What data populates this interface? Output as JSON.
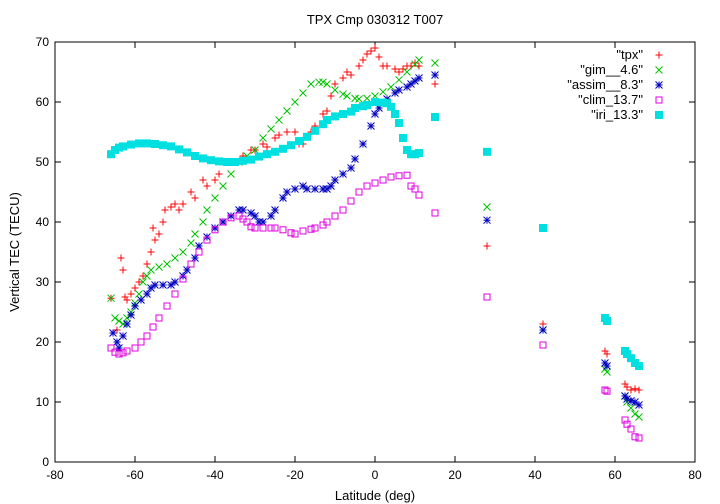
{
  "chart_data": {
    "type": "scatter",
    "title": "TPX Cmp 030312 T007",
    "xlabel": "Latitude (deg)",
    "ylabel": "Vertical TEC (TECU)",
    "xlim": [
      -80,
      80
    ],
    "ylim": [
      0,
      70
    ],
    "xticks": [
      -80,
      -60,
      -40,
      -20,
      0,
      20,
      40,
      60,
      80
    ],
    "yticks": [
      0,
      10,
      20,
      30,
      40,
      50,
      60,
      70
    ],
    "grid": false,
    "legend_position": "top-right",
    "series": [
      {
        "name": "\"tpx\"",
        "marker": "plus",
        "color": "#ff0000",
        "points": [
          [
            -66,
            27.3
          ],
          [
            -64.5,
            22
          ],
          [
            -63.5,
            34
          ],
          [
            -63,
            32
          ],
          [
            -62.5,
            27.5
          ],
          [
            -62,
            27
          ],
          [
            -61,
            28
          ],
          [
            -60,
            29
          ],
          [
            -59,
            30
          ],
          [
            -58,
            31
          ],
          [
            -57,
            33
          ],
          [
            -56,
            35
          ],
          [
            -55.5,
            39
          ],
          [
            -55,
            37
          ],
          [
            -54,
            38
          ],
          [
            -53,
            40
          ],
          [
            -52.5,
            42
          ],
          [
            -51,
            42.5
          ],
          [
            -50,
            43
          ],
          [
            -49,
            42
          ],
          [
            -48,
            43
          ],
          [
            -46,
            45
          ],
          [
            -45,
            44
          ],
          [
            -43,
            47
          ],
          [
            -42,
            46
          ],
          [
            -40,
            47
          ],
          [
            -39,
            48
          ],
          [
            -37,
            50
          ],
          [
            -35,
            50
          ],
          [
            -33,
            51
          ],
          [
            -31,
            52
          ],
          [
            -30,
            52
          ],
          [
            -28,
            53
          ],
          [
            -27,
            52.5
          ],
          [
            -25,
            54
          ],
          [
            -24,
            54.5
          ],
          [
            -22,
            55
          ],
          [
            -20,
            55
          ],
          [
            -19,
            53
          ],
          [
            -18,
            53
          ],
          [
            -16,
            55
          ],
          [
            -15,
            56
          ],
          [
            -13,
            58
          ],
          [
            -12,
            58.5
          ],
          [
            -11,
            61
          ],
          [
            -10,
            63
          ],
          [
            -8,
            64
          ],
          [
            -7,
            65
          ],
          [
            -6,
            64.5
          ],
          [
            -4,
            66
          ],
          [
            -3,
            67
          ],
          [
            -2,
            68
          ],
          [
            -1,
            68.5
          ],
          [
            0,
            69
          ],
          [
            1,
            67.5
          ],
          [
            2,
            66
          ],
          [
            3,
            66
          ],
          [
            5,
            65.5
          ],
          [
            6,
            65
          ],
          [
            7,
            65.5
          ],
          [
            8,
            66
          ],
          [
            9,
            66
          ],
          [
            10,
            66.5
          ],
          [
            11,
            66
          ],
          [
            15,
            63
          ],
          [
            28,
            36
          ],
          [
            42,
            23
          ],
          [
            57.5,
            18.5
          ],
          [
            58,
            18
          ],
          [
            62.5,
            13
          ],
          [
            63,
            12.5
          ],
          [
            64,
            12
          ],
          [
            65,
            12.2
          ],
          [
            66,
            12
          ]
        ]
      },
      {
        "name": "\"gim__4.6\"",
        "marker": "cross",
        "color": "#00c000",
        "points": [
          [
            -66,
            27.3
          ],
          [
            -65,
            24
          ],
          [
            -64,
            23.5
          ],
          [
            -63,
            23
          ],
          [
            -62,
            24
          ],
          [
            -61,
            25
          ],
          [
            -60,
            26.5
          ],
          [
            -59,
            28
          ],
          [
            -58,
            30
          ],
          [
            -57,
            31
          ],
          [
            -56,
            32
          ],
          [
            -54,
            32.5
          ],
          [
            -52,
            33
          ],
          [
            -50,
            34
          ],
          [
            -48,
            35
          ],
          [
            -46,
            36.5
          ],
          [
            -45,
            38
          ],
          [
            -43,
            40
          ],
          [
            -42,
            42
          ],
          [
            -40,
            44
          ],
          [
            -38,
            46
          ],
          [
            -36,
            48
          ],
          [
            -34,
            50
          ],
          [
            -32,
            51
          ],
          [
            -30,
            52
          ],
          [
            -28,
            54
          ],
          [
            -26,
            55.5
          ],
          [
            -24,
            57
          ],
          [
            -22,
            58.5
          ],
          [
            -20,
            60
          ],
          [
            -18,
            61.5
          ],
          [
            -16,
            63
          ],
          [
            -14,
            63.3
          ],
          [
            -13,
            63.3
          ],
          [
            -12,
            63
          ],
          [
            -10,
            62
          ],
          [
            -8,
            61.3
          ],
          [
            -7,
            61
          ],
          [
            -5,
            60.6
          ],
          [
            -4,
            60.5
          ],
          [
            -2,
            60.6
          ],
          [
            0,
            61
          ],
          [
            2,
            61.7
          ],
          [
            4,
            62.5
          ],
          [
            6,
            63.7
          ],
          [
            8,
            65
          ],
          [
            10,
            66.3
          ],
          [
            11,
            67
          ],
          [
            15,
            66.5
          ],
          [
            28,
            42.5
          ],
          [
            42,
            22
          ],
          [
            57.5,
            15.5
          ],
          [
            58,
            15
          ],
          [
            62.5,
            11
          ],
          [
            63,
            10
          ],
          [
            64,
            9
          ],
          [
            65,
            8
          ],
          [
            66,
            7.5
          ]
        ]
      },
      {
        "name": "\"assim__8.3\"",
        "marker": "star",
        "color": "#0000c0",
        "points": [
          [
            -65.5,
            21.5
          ],
          [
            -64.5,
            20
          ],
          [
            -64,
            19
          ],
          [
            -63,
            21
          ],
          [
            -62,
            23
          ],
          [
            -61,
            24.5
          ],
          [
            -60,
            26
          ],
          [
            -58.5,
            27
          ],
          [
            -57,
            28
          ],
          [
            -56,
            29
          ],
          [
            -55,
            29.5
          ],
          [
            -53,
            29.5
          ],
          [
            -51,
            29.5
          ],
          [
            -50,
            30
          ],
          [
            -48,
            31
          ],
          [
            -47,
            32
          ],
          [
            -45,
            34
          ],
          [
            -44,
            36
          ],
          [
            -42,
            37.5
          ],
          [
            -40,
            39
          ],
          [
            -38,
            40
          ],
          [
            -36,
            41
          ],
          [
            -34,
            42
          ],
          [
            -33,
            42
          ],
          [
            -31,
            41.5
          ],
          [
            -30,
            41
          ],
          [
            -29,
            40
          ],
          [
            -28,
            40
          ],
          [
            -26,
            41
          ],
          [
            -25,
            42
          ],
          [
            -23,
            44
          ],
          [
            -22,
            45
          ],
          [
            -20,
            45.5
          ],
          [
            -18,
            46
          ],
          [
            -17,
            45.5
          ],
          [
            -15,
            45.5
          ],
          [
            -13,
            45.5
          ],
          [
            -12,
            45.5
          ],
          [
            -11,
            46
          ],
          [
            -10,
            47
          ],
          [
            -8,
            48
          ],
          [
            -6,
            49
          ],
          [
            -5,
            50.5
          ],
          [
            -3,
            53
          ],
          [
            -1,
            56
          ],
          [
            0,
            58
          ],
          [
            1,
            59
          ],
          [
            3,
            60.5
          ],
          [
            5,
            61.5
          ],
          [
            6,
            62
          ],
          [
            8,
            62.5
          ],
          [
            9,
            63
          ],
          [
            10,
            63.5
          ],
          [
            11,
            64
          ],
          [
            15,
            64.5
          ],
          [
            28,
            40.3
          ],
          [
            42,
            22
          ],
          [
            57.5,
            16.5
          ],
          [
            58,
            16
          ],
          [
            62.5,
            11
          ],
          [
            63,
            10.5
          ],
          [
            64,
            10.2
          ],
          [
            65,
            10
          ],
          [
            66,
            9.5
          ]
        ]
      },
      {
        "name": "\"clim_13.7\"",
        "marker": "square",
        "color": "#e000e0",
        "points": [
          [
            -66,
            19
          ],
          [
            -65,
            18.3
          ],
          [
            -64,
            18
          ],
          [
            -63,
            18.2
          ],
          [
            -62,
            18.5
          ],
          [
            -60,
            19
          ],
          [
            -58.5,
            20
          ],
          [
            -57,
            21
          ],
          [
            -55.5,
            22.5
          ],
          [
            -54,
            24
          ],
          [
            -52,
            26
          ],
          [
            -50,
            28
          ],
          [
            -48,
            30.5
          ],
          [
            -46,
            33
          ],
          [
            -44,
            35
          ],
          [
            -42,
            37
          ],
          [
            -40,
            38.7
          ],
          [
            -38,
            40
          ],
          [
            -36,
            40.7
          ],
          [
            -34,
            41
          ],
          [
            -33,
            40.5
          ],
          [
            -32,
            40
          ],
          [
            -31,
            39.2
          ],
          [
            -30,
            39
          ],
          [
            -28,
            39
          ],
          [
            -26,
            39
          ],
          [
            -25,
            39
          ],
          [
            -23,
            38.7
          ],
          [
            -21,
            38.2
          ],
          [
            -20,
            38
          ],
          [
            -18,
            38.5
          ],
          [
            -16,
            38.8
          ],
          [
            -15,
            39
          ],
          [
            -13,
            39.5
          ],
          [
            -12,
            40
          ],
          [
            -10,
            41
          ],
          [
            -8,
            42
          ],
          [
            -6,
            43.5
          ],
          [
            -4,
            45
          ],
          [
            -2,
            46
          ],
          [
            0,
            46.5
          ],
          [
            2,
            47
          ],
          [
            4,
            47.5
          ],
          [
            6,
            47.7
          ],
          [
            8,
            47.8
          ],
          [
            9,
            46
          ],
          [
            10,
            45.5
          ],
          [
            11,
            44.5
          ],
          [
            15,
            41.5
          ],
          [
            28,
            27.5
          ],
          [
            42,
            19.5
          ],
          [
            57.5,
            12
          ],
          [
            58,
            11.8
          ],
          [
            62.5,
            7
          ],
          [
            63,
            6.3
          ],
          [
            64,
            5.5
          ],
          [
            65,
            4.2
          ],
          [
            66,
            4
          ]
        ]
      },
      {
        "name": "\"iri_13.3\"",
        "marker": "filled-square",
        "color": "#00e0e0",
        "points": [
          [
            -66,
            51.3
          ],
          [
            -65,
            52
          ],
          [
            -64,
            52.4
          ],
          [
            -63,
            52.6
          ],
          [
            -61,
            52.9
          ],
          [
            -59,
            53.1
          ],
          [
            -57,
            53.1
          ],
          [
            -55,
            53
          ],
          [
            -53,
            52.8
          ],
          [
            -51,
            52.6
          ],
          [
            -49,
            52.1
          ],
          [
            -47,
            51.6
          ],
          [
            -45,
            51
          ],
          [
            -43,
            50.6
          ],
          [
            -41,
            50.3
          ],
          [
            -39,
            50.1
          ],
          [
            -37,
            50
          ],
          [
            -35,
            50
          ],
          [
            -33,
            50.2
          ],
          [
            -31,
            50.4
          ],
          [
            -29,
            50.9
          ],
          [
            -27,
            51.3
          ],
          [
            -25,
            51.7
          ],
          [
            -23,
            52.2
          ],
          [
            -21,
            52.8
          ],
          [
            -19,
            53.5
          ],
          [
            -17,
            54.2
          ],
          [
            -15,
            55.2
          ],
          [
            -13,
            56.3
          ],
          [
            -12,
            57
          ],
          [
            -10,
            57.6
          ],
          [
            -8,
            58
          ],
          [
            -6,
            58.4
          ],
          [
            -5,
            59
          ],
          [
            -3,
            59.3
          ],
          [
            -2,
            59.5
          ],
          [
            0,
            60
          ],
          [
            2,
            59.9
          ],
          [
            3,
            59.8
          ],
          [
            4,
            59.2
          ],
          [
            5,
            58
          ],
          [
            6,
            56.5
          ],
          [
            7,
            54
          ],
          [
            8,
            52
          ],
          [
            9,
            51.3
          ],
          [
            10,
            51.3
          ],
          [
            11,
            51.5
          ],
          [
            15,
            57.5
          ],
          [
            28,
            51.7
          ],
          [
            42,
            39
          ],
          [
            57.5,
            24
          ],
          [
            58,
            23.5
          ],
          [
            62.5,
            18.5
          ],
          [
            63,
            18
          ],
          [
            64,
            17.3
          ],
          [
            65,
            16.5
          ],
          [
            66,
            16
          ]
        ]
      }
    ]
  }
}
